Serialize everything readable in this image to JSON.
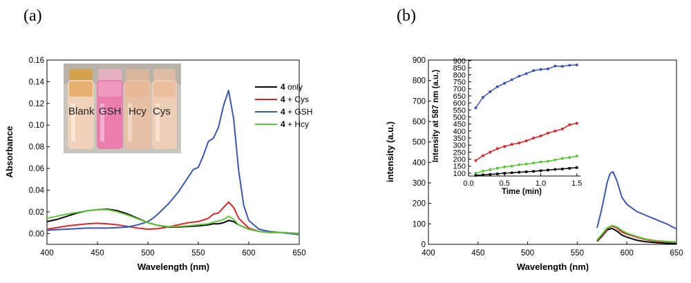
{
  "chart_data": [
    {
      "panel_label": "(a)",
      "type": "line",
      "xlabel": "Wavelength (nm)",
      "ylabel": "Absorbance",
      "xlim": [
        400,
        650
      ],
      "ylim": [
        -0.01,
        0.16
      ],
      "xticks": [
        "400",
        "450",
        "500",
        "550",
        "600",
        "650"
      ],
      "yticks": [
        "0.00",
        "0.02",
        "0.04",
        "0.06",
        "0.08",
        "0.10",
        "0.12",
        "0.14",
        "0.16"
      ],
      "legend": {
        "position": "top-right",
        "entries": [
          {
            "bold": "4",
            "text": " only"
          },
          {
            "bold": "4",
            "text": " + Cys"
          },
          {
            "bold": "4",
            "text": " + GSH"
          },
          {
            "bold": "4",
            "text": " + Hcy"
          }
        ]
      },
      "inset_photo_labels": [
        "Blank",
        "GSH",
        "Hcy",
        "Cys"
      ],
      "series": [
        {
          "name": "4 only",
          "color": "#000000",
          "x": [
            400,
            410,
            420,
            430,
            440,
            450,
            460,
            470,
            480,
            490,
            500,
            510,
            520,
            530,
            540,
            550,
            560,
            565,
            570,
            575,
            580,
            585,
            590,
            600,
            610,
            620,
            630,
            640,
            650
          ],
          "y": [
            0.011,
            0.013,
            0.016,
            0.019,
            0.021,
            0.022,
            0.0225,
            0.021,
            0.018,
            0.014,
            0.01,
            0.0075,
            0.006,
            0.006,
            0.0065,
            0.007,
            0.008,
            0.009,
            0.009,
            0.01,
            0.012,
            0.011,
            0.008,
            0.004,
            0.002,
            0.001,
            0.001,
            0.0005,
            0.0
          ]
        },
        {
          "name": "4 + Cys",
          "color": "#d62728",
          "x": [
            400,
            410,
            420,
            430,
            440,
            450,
            460,
            470,
            480,
            490,
            500,
            510,
            520,
            530,
            540,
            550,
            560,
            565,
            570,
            575,
            580,
            585,
            590,
            600,
            610,
            620,
            630,
            640,
            650
          ],
          "y": [
            0.004,
            0.0055,
            0.007,
            0.008,
            0.009,
            0.0095,
            0.009,
            0.008,
            0.0065,
            0.005,
            0.004,
            0.0045,
            0.006,
            0.008,
            0.01,
            0.011,
            0.014,
            0.018,
            0.019,
            0.024,
            0.029,
            0.024,
            0.014,
            0.005,
            0.002,
            0.001,
            0.001,
            0.0005,
            0.0
          ]
        },
        {
          "name": "4 + GSH",
          "color": "#3a56b5",
          "x": [
            400,
            410,
            420,
            430,
            440,
            450,
            460,
            470,
            480,
            490,
            500,
            505,
            510,
            520,
            530,
            540,
            545,
            550,
            555,
            560,
            565,
            570,
            575,
            580,
            585,
            590,
            595,
            600,
            610,
            620,
            630,
            640,
            650
          ],
          "y": [
            0.003,
            0.0035,
            0.004,
            0.0045,
            0.005,
            0.005,
            0.005,
            0.0055,
            0.006,
            0.008,
            0.011,
            0.014,
            0.018,
            0.027,
            0.038,
            0.052,
            0.059,
            0.061,
            0.072,
            0.085,
            0.088,
            0.098,
            0.118,
            0.132,
            0.106,
            0.058,
            0.026,
            0.012,
            0.004,
            0.002,
            0.001,
            0.0,
            -0.001
          ]
        },
        {
          "name": "4 + Hcy",
          "color": "#5fc23a",
          "x": [
            400,
            410,
            420,
            430,
            440,
            450,
            460,
            470,
            480,
            490,
            500,
            510,
            520,
            530,
            540,
            550,
            560,
            565,
            570,
            575,
            580,
            585,
            590,
            600,
            610,
            620,
            630,
            640,
            650
          ],
          "y": [
            0.014,
            0.016,
            0.018,
            0.0195,
            0.021,
            0.022,
            0.022,
            0.02,
            0.017,
            0.0135,
            0.01,
            0.0075,
            0.0065,
            0.0065,
            0.007,
            0.008,
            0.009,
            0.0105,
            0.0115,
            0.013,
            0.016,
            0.013,
            0.008,
            0.004,
            0.002,
            0.001,
            0.001,
            0.0005,
            0.0
          ]
        }
      ]
    },
    {
      "panel_label": "(b)",
      "type": "line",
      "xlabel": "Wavelength (nm)",
      "ylabel": "intensity (a.u.)",
      "xlim": [
        400,
        650
      ],
      "ylim": [
        0,
        900
      ],
      "xticks": [
        "400",
        "450",
        "500",
        "550",
        "600",
        "650"
      ],
      "yticks": [
        "0",
        "100",
        "200",
        "300",
        "400",
        "500",
        "600",
        "700",
        "800",
        "900"
      ],
      "series": [
        {
          "name": "4 only",
          "color": "#000000",
          "x": [
            570,
            575,
            580,
            585,
            590,
            595,
            600,
            610,
            620,
            630,
            640,
            650
          ],
          "y": [
            15,
            40,
            70,
            78,
            65,
            45,
            35,
            20,
            12,
            8,
            5,
            3
          ]
        },
        {
          "name": "4 + Cys",
          "color": "#d62728",
          "x": [
            570,
            575,
            580,
            585,
            590,
            595,
            600,
            610,
            620,
            630,
            640,
            650
          ],
          "y": [
            18,
            45,
            75,
            90,
            80,
            60,
            50,
            35,
            22,
            15,
            12,
            10
          ]
        },
        {
          "name": "4 + GSH",
          "color": "#3a56b5",
          "x": [
            570,
            575,
            580,
            583,
            586,
            590,
            595,
            600,
            610,
            620,
            630,
            640,
            650
          ],
          "y": [
            80,
            180,
            300,
            345,
            355,
            310,
            230,
            195,
            160,
            140,
            120,
            100,
            75
          ]
        },
        {
          "name": "4 + Hcy",
          "color": "#5fc23a",
          "x": [
            570,
            575,
            580,
            585,
            590,
            595,
            600,
            610,
            620,
            630,
            640,
            650
          ],
          "y": [
            22,
            50,
            80,
            92,
            85,
            68,
            55,
            38,
            25,
            18,
            14,
            12
          ]
        }
      ],
      "inset": {
        "type": "line",
        "xlabel": "Time (min)",
        "ylabel": "Intensity at 587 nm (a.u.)",
        "xlim": [
          0.0,
          1.55
        ],
        "ylim": [
          80,
          900
        ],
        "xticks": [
          "0.0",
          "0.5",
          "1.0",
          "1.5"
        ],
        "yticks": [
          "100",
          "150",
          "200",
          "250",
          "300",
          "350",
          "400",
          "450",
          "500",
          "550",
          "600",
          "650",
          "700",
          "750",
          "800",
          "850",
          "900"
        ],
        "series": [
          {
            "name": "4 + GSH",
            "color": "#3a56b5",
            "x": [
              0.1,
              0.2,
              0.3,
              0.4,
              0.5,
              0.6,
              0.7,
              0.8,
              0.9,
              1.0,
              1.1,
              1.2,
              1.3,
              1.4,
              1.5
            ],
            "y": [
              565,
              640,
              680,
              715,
              740,
              765,
              790,
              808,
              830,
              838,
              842,
              862,
              860,
              868,
              870
            ]
          },
          {
            "name": "4 + Cys",
            "color": "#d62728",
            "x": [
              0.1,
              0.2,
              0.3,
              0.4,
              0.5,
              0.6,
              0.7,
              0.8,
              0.9,
              1.0,
              1.1,
              1.2,
              1.3,
              1.4,
              1.5
            ],
            "y": [
              190,
              225,
              250,
              275,
              290,
              305,
              315,
              330,
              350,
              365,
              385,
              400,
              415,
              445,
              455
            ]
          },
          {
            "name": "4 + Hcy",
            "color": "#5fc23a",
            "x": [
              0.1,
              0.2,
              0.3,
              0.4,
              0.5,
              0.6,
              0.7,
              0.8,
              0.9,
              1.0,
              1.1,
              1.2,
              1.3,
              1.4,
              1.5
            ],
            "y": [
              100,
              115,
              125,
              135,
              145,
              150,
              160,
              165,
              172,
              180,
              185,
              195,
              205,
              212,
              222
            ]
          },
          {
            "name": "4 only",
            "color": "#000000",
            "x": [
              0.1,
              0.2,
              0.3,
              0.4,
              0.5,
              0.6,
              0.7,
              0.8,
              0.9,
              1.0,
              1.1,
              1.2,
              1.3,
              1.4,
              1.5
            ],
            "y": [
              85,
              88,
              92,
              95,
              100,
              103,
              107,
              110,
              113,
              118,
              122,
              127,
              130,
              135,
              140
            ]
          }
        ]
      }
    }
  ]
}
